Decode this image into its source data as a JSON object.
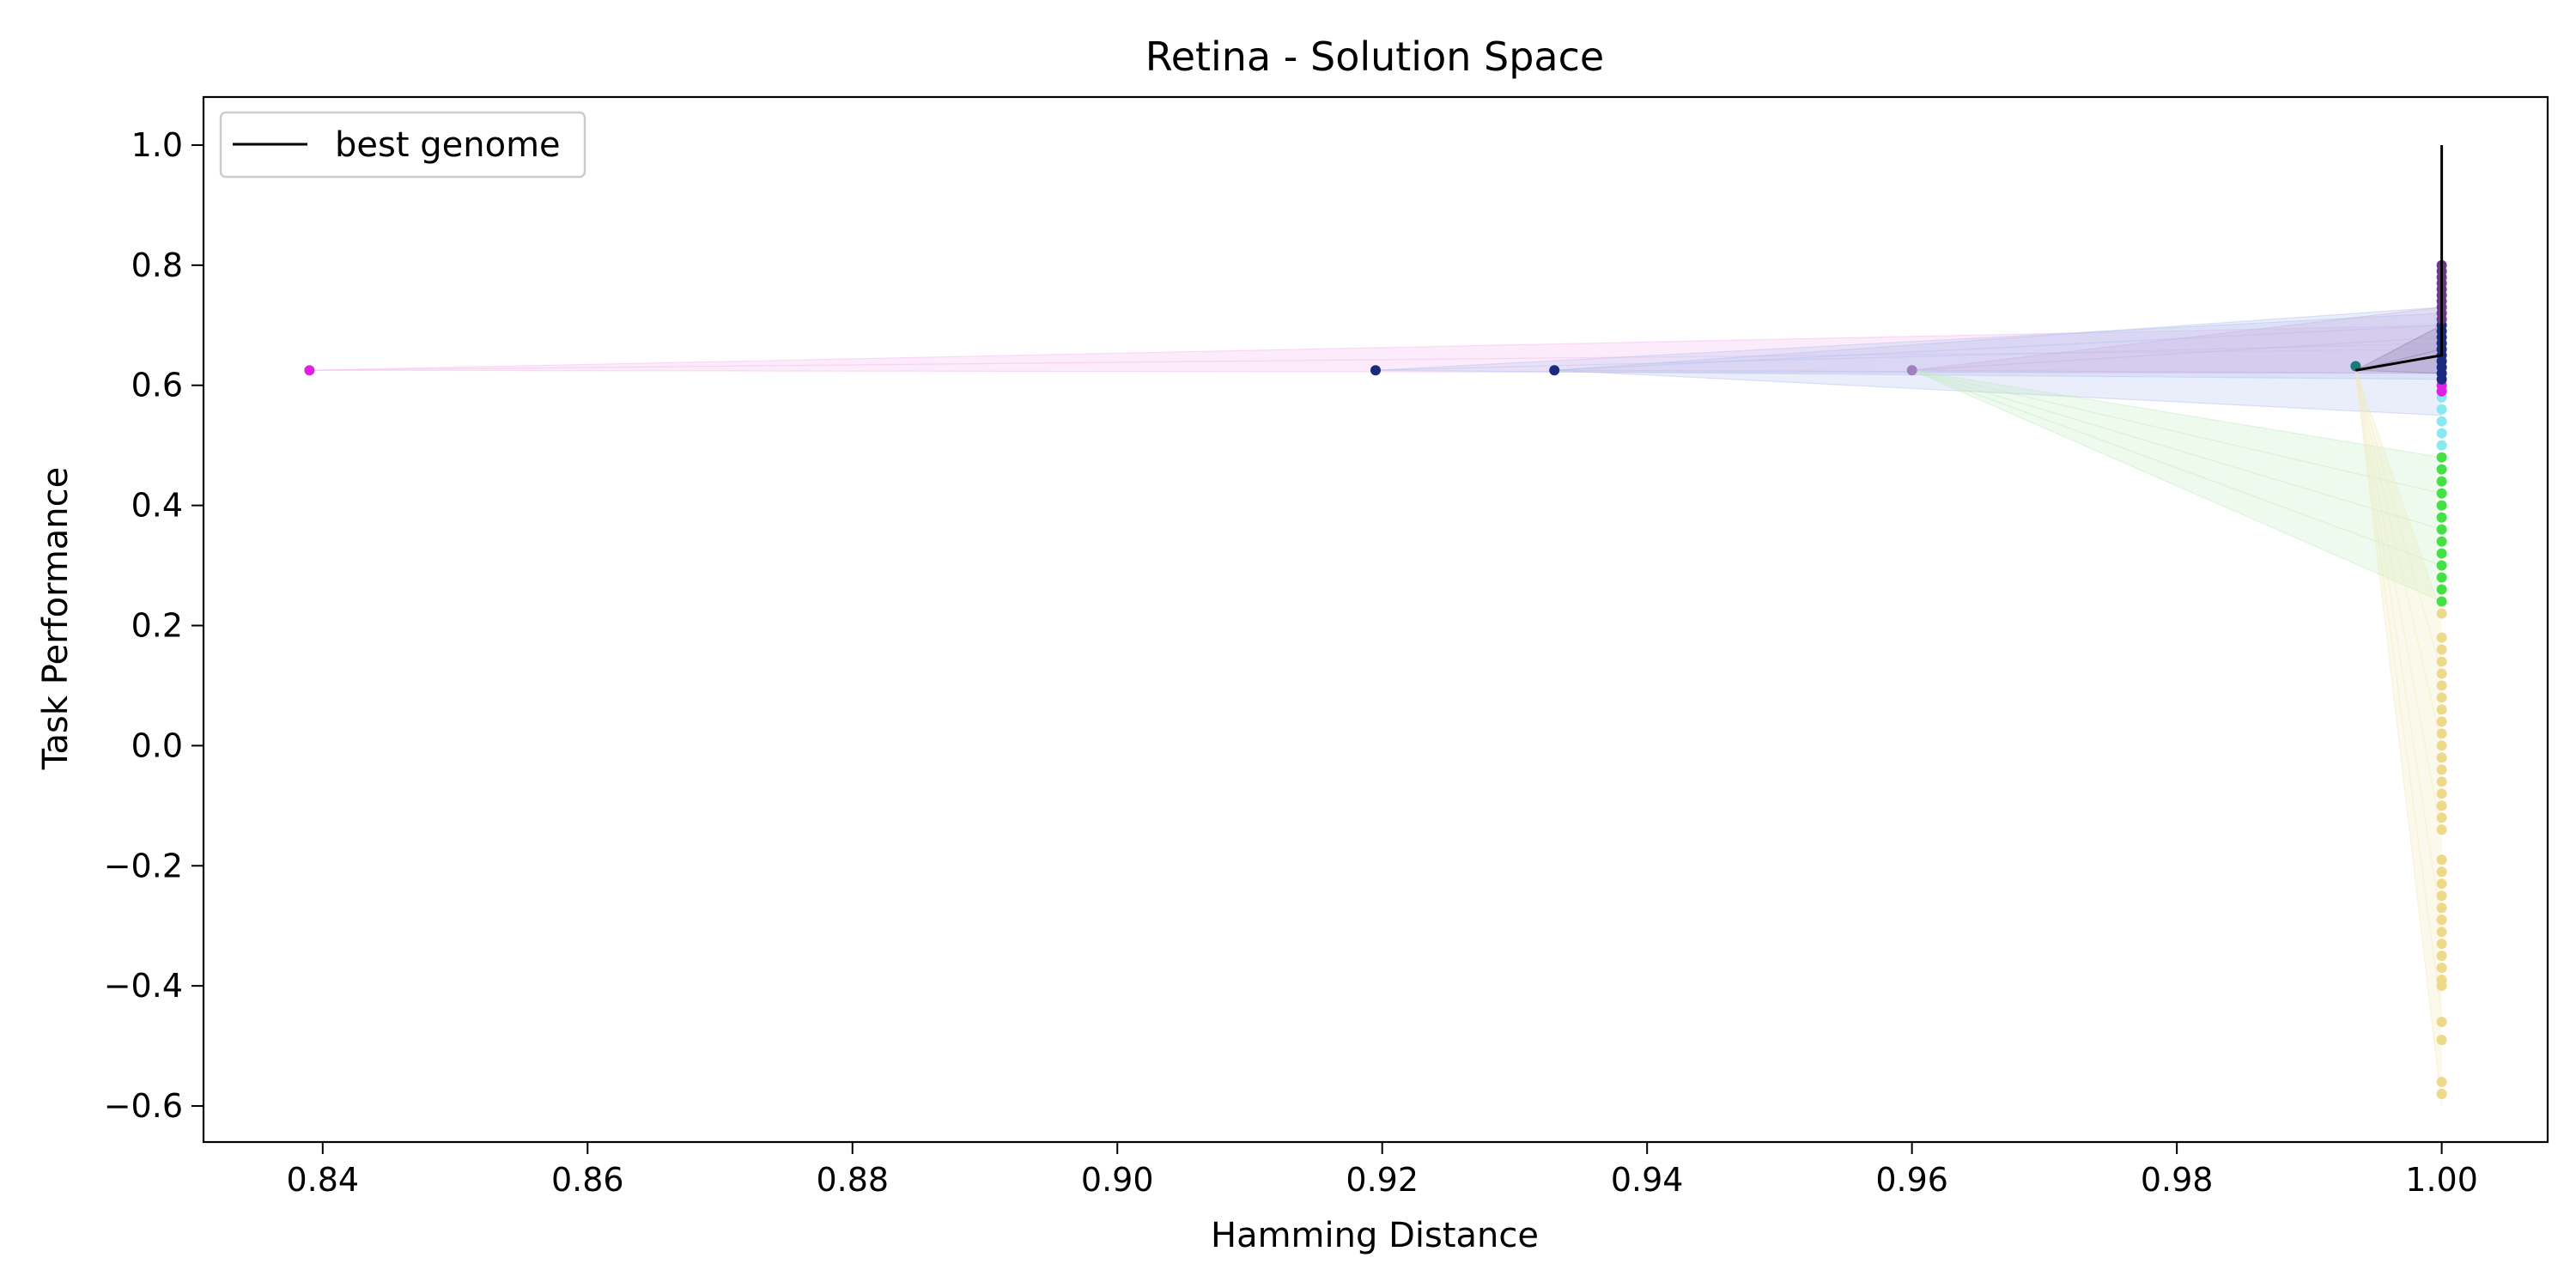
{
  "chart_data": {
    "type": "scatter",
    "title": "Retina - Solution Space",
    "xlabel": "Hamming Distance",
    "ylabel": "Task Performance",
    "xlim": [
      0.831,
      1.008
    ],
    "ylim": [
      -0.66,
      1.08
    ],
    "x_ticks": [
      0.84,
      0.86,
      0.88,
      0.9,
      0.92,
      0.94,
      0.96,
      0.98,
      1.0
    ],
    "x_tick_labels": [
      "0.84",
      "0.86",
      "0.88",
      "0.90",
      "0.92",
      "0.94",
      "0.96",
      "0.98",
      "1.00"
    ],
    "y_ticks": [
      1.0,
      0.8,
      0.6,
      0.4,
      0.2,
      0.0,
      -0.2,
      -0.4,
      -0.6
    ],
    "y_tick_labels": [
      "1.0",
      "0.8",
      "0.6",
      "0.4",
      "0.2",
      "0.0",
      "−0.2",
      "−0.4",
      "−0.6"
    ],
    "grid": false,
    "legend": {
      "position": "top-left",
      "entries": [
        {
          "label": "best genome",
          "color": "#000000",
          "marker": "line"
        }
      ]
    },
    "best_genome": {
      "color": "#000000",
      "x": [
        0.9935,
        1.0,
        1.0
      ],
      "y": [
        0.625,
        0.65,
        1.0
      ]
    },
    "points": [
      {
        "x": 0.839,
        "y": 0.625,
        "color": "#e020e0"
      },
      {
        "x": 0.9195,
        "y": 0.625,
        "color": "#1a2a80"
      },
      {
        "x": 0.933,
        "y": 0.625,
        "color": "#1a2a80"
      },
      {
        "x": 0.96,
        "y": 0.625,
        "color": "#a080c0"
      },
      {
        "x": 0.9935,
        "y": 0.632,
        "color": "#1a7a7a"
      }
    ],
    "fans": [
      {
        "from_x": 0.839,
        "from_y": 0.625,
        "to_x": 1.0,
        "to_y": [
          0.62,
          0.66,
          0.7
        ],
        "color": "#f4b8ec"
      },
      {
        "from_x": 0.9195,
        "from_y": 0.625,
        "to_x": 1.0,
        "to_y": [
          0.61,
          0.67,
          0.72
        ],
        "color": "#b8c4f0"
      },
      {
        "from_x": 0.933,
        "from_y": 0.625,
        "to_x": 1.0,
        "to_y": [
          0.55,
          0.62,
          0.7,
          0.73
        ],
        "color": "#b4c0ee"
      },
      {
        "from_x": 0.96,
        "from_y": 0.625,
        "to_x": 1.0,
        "to_y": [
          0.62,
          0.68,
          0.73
        ],
        "color": "#c8b4e0"
      },
      {
        "from_x": 0.96,
        "from_y": 0.625,
        "to_x": 1.0,
        "to_y": [
          0.24,
          0.3,
          0.36,
          0.42,
          0.48
        ],
        "color": "#bfeebd"
      },
      {
        "from_x": 0.9935,
        "from_y": 0.625,
        "to_x": 1.0,
        "to_y": [
          -0.6,
          -0.45,
          -0.3,
          -0.15,
          0.0,
          0.12,
          0.22
        ],
        "color": "#f2e8b8"
      },
      {
        "from_x": 0.9935,
        "from_y": 0.625,
        "to_x": 1.0,
        "to_y": [
          0.62,
          0.66,
          0.7
        ],
        "color": "#8a7aa8"
      }
    ],
    "column_x": 1.0,
    "column_groups": [
      {
        "name": "yellow",
        "color": "#eed98a",
        "y": [
          0.22,
          0.18,
          0.16,
          0.14,
          0.12,
          0.1,
          0.08,
          0.06,
          0.04,
          0.02,
          0.0,
          -0.02,
          -0.04,
          -0.06,
          -0.08,
          -0.1,
          -0.12,
          -0.14,
          -0.19,
          -0.21,
          -0.23,
          -0.25,
          -0.27,
          -0.29,
          -0.31,
          -0.33,
          -0.35,
          -0.37,
          -0.39,
          -0.4,
          -0.46,
          -0.49,
          -0.56,
          -0.58
        ]
      },
      {
        "name": "green",
        "color": "#44e044",
        "y": [
          0.24,
          0.26,
          0.28,
          0.3,
          0.32,
          0.34,
          0.36,
          0.38,
          0.4,
          0.42,
          0.44,
          0.46,
          0.48
        ]
      },
      {
        "name": "cyan",
        "color": "#8ae8f0",
        "y": [
          0.5,
          0.52,
          0.54,
          0.56,
          0.58
        ]
      },
      {
        "name": "magenta",
        "color": "#e020e0",
        "y": [
          0.59,
          0.6
        ]
      },
      {
        "name": "navy",
        "color": "#1a2a80",
        "y": [
          0.61,
          0.62,
          0.63,
          0.64,
          0.65,
          0.66,
          0.67,
          0.68,
          0.69,
          0.7
        ]
      },
      {
        "name": "purple",
        "color": "#6a3a8a",
        "y": [
          0.71,
          0.72,
          0.73,
          0.74,
          0.75,
          0.76,
          0.77,
          0.78,
          0.79,
          0.8
        ]
      }
    ]
  }
}
